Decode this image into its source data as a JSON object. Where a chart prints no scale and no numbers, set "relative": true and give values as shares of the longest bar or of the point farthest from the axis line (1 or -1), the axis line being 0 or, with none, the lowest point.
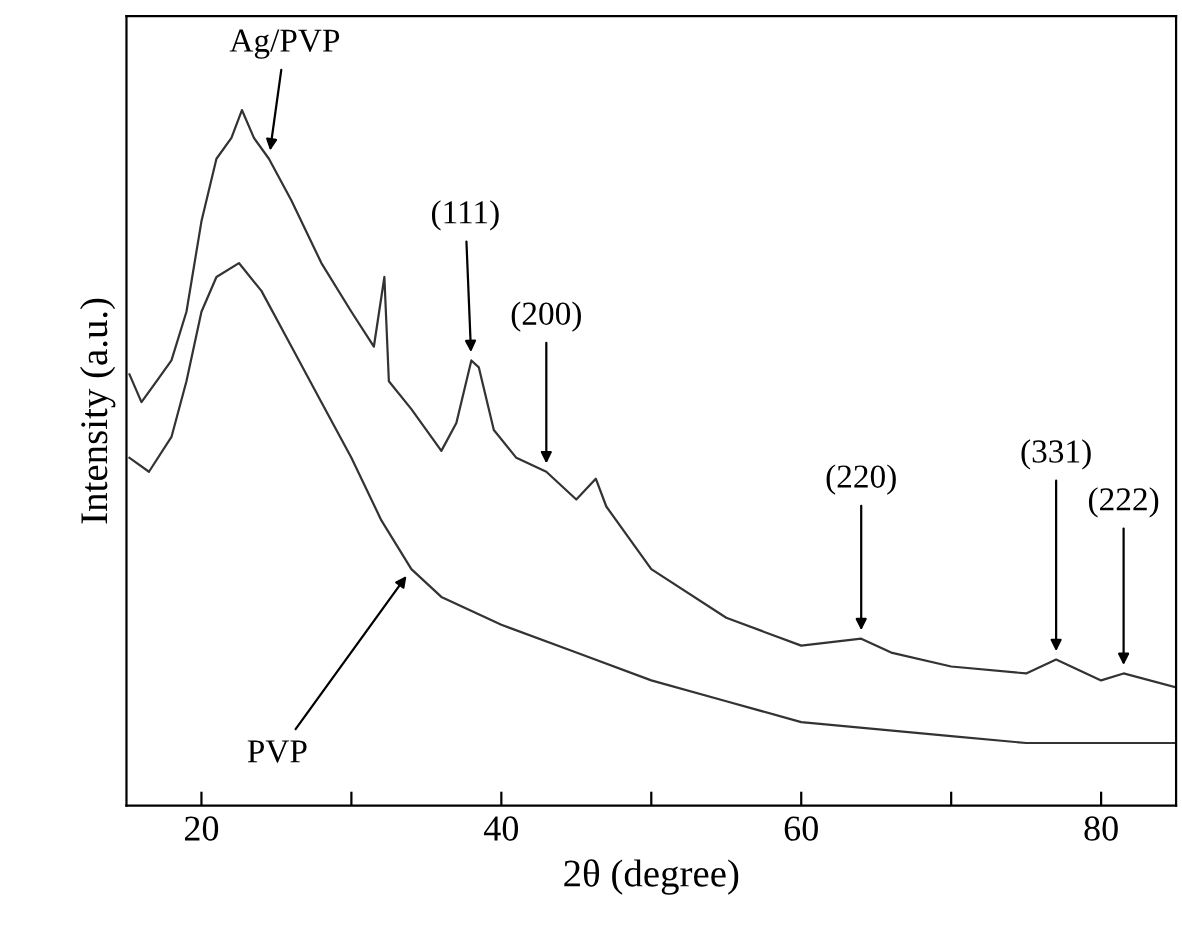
{
  "chart_data": {
    "type": "line",
    "relative": true,
    "xlabel": "2θ (degree)",
    "ylabel": "Intensity (a.u.)",
    "xlim": [
      15,
      85
    ],
    "xticks": [
      20,
      {
        "value": 30,
        "label": null
      },
      40,
      {
        "value": 50,
        "label": null
      },
      60,
      {
        "value": 70,
        "label": null
      },
      80
    ],
    "grid": false,
    "legend": false,
    "marker": "none",
    "line_style": "solid",
    "series": [
      {
        "color": "#333333",
        "x": [
          15.2,
          16,
          17,
          18,
          19,
          20,
          21,
          22,
          22.7,
          23.5,
          24.5,
          26,
          28,
          30,
          31.5,
          32.2,
          32.5,
          34,
          36,
          37,
          38,
          38.5,
          39.5,
          41,
          43,
          45,
          46.3,
          47,
          50,
          55,
          60,
          64,
          66,
          70,
          75,
          77,
          80,
          81.5,
          85
        ],
        "values": [
          0.62,
          0.58,
          0.61,
          0.64,
          0.71,
          0.84,
          0.93,
          0.96,
          1.0,
          0.96,
          0.93,
          0.87,
          0.78,
          0.71,
          0.66,
          0.76,
          0.61,
          0.57,
          0.51,
          0.55,
          0.64,
          0.63,
          0.54,
          0.5,
          0.48,
          0.44,
          0.47,
          0.43,
          0.34,
          0.27,
          0.23,
          0.24,
          0.22,
          0.2,
          0.19,
          0.21,
          0.18,
          0.19,
          0.17
        ]
      },
      {
        "color": "#333333",
        "x": [
          15.2,
          16.5,
          18,
          19,
          20,
          21,
          22.5,
          24,
          26,
          28,
          30,
          32,
          34,
          36,
          40,
          45,
          50,
          55,
          60,
          65,
          70,
          75,
          80,
          85
        ],
        "values": [
          0.5,
          0.48,
          0.53,
          0.61,
          0.71,
          0.76,
          0.78,
          0.74,
          0.66,
          0.58,
          0.5,
          0.41,
          0.34,
          0.3,
          0.26,
          0.22,
          0.18,
          0.15,
          0.12,
          0.11,
          0.1,
          0.09,
          0.09,
          0.09
        ]
      }
    ],
    "annotations": [
      {
        "text": "Ag/PVP",
        "x": 24.5,
        "y": 0.93
      },
      {
        "text": "(111)",
        "x": 38,
        "y": 0.64
      },
      {
        "text": "(200)",
        "x": 43,
        "y": 0.48
      },
      {
        "text": "(220)",
        "x": 64,
        "y": 0.24
      },
      {
        "text": "(331)",
        "x": 77,
        "y": 0.21
      },
      {
        "text": "(222)",
        "x": 81.5,
        "y": 0.19
      },
      {
        "text": "PVP",
        "x": 34,
        "y": 0.34
      }
    ]
  }
}
